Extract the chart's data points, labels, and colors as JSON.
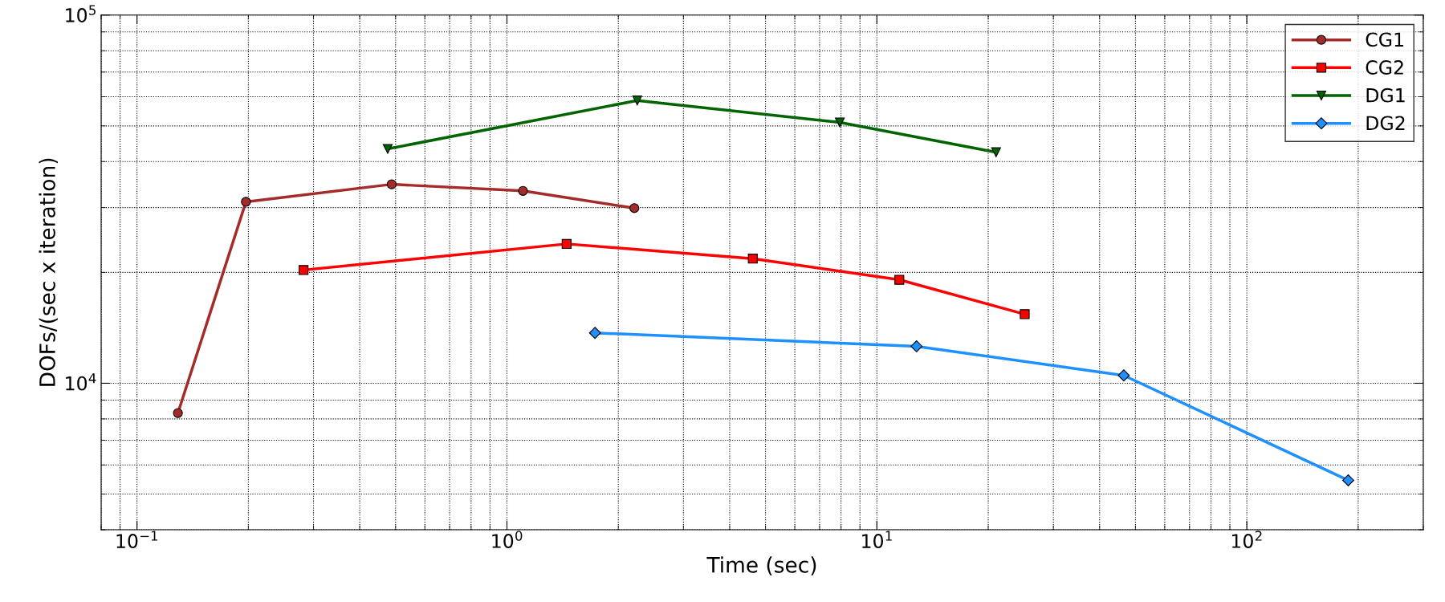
{
  "chart_data": {
    "type": "line",
    "xlabel": "Time (sec)",
    "ylabel": "DOFs/(sec x iteration)",
    "log": "xy",
    "grid": true,
    "legend": "top right",
    "xlim": [
      0.08,
      300
    ],
    "xticks": [
      {
        "value": 0.1,
        "label": "10$^{−1}$"
      },
      {
        "value": 1,
        "label": "10$^{0}$"
      },
      {
        "value": 10,
        "label": "10$^{1}$"
      },
      {
        "value": 100,
        "label": "10$^{2}$"
      }
    ],
    "ylim": [
      4000,
      100000
    ],
    "yticks": [
      {
        "value": 10000,
        "label": "10$^{4}$"
      },
      {
        "value": 100000,
        "label": "10$^{5}$"
      }
    ],
    "series": [
      {
        "name": "CG1",
        "color": "#a52a2a",
        "marker": "circle",
        "x": [
          0.129,
          0.197,
          0.488,
          1.105,
          2.21
        ],
        "values": [
          8300,
          31100,
          34700,
          33300,
          29900
        ]
      },
      {
        "name": "CG2",
        "color": "#ff0000",
        "marker": "square",
        "x": [
          0.282,
          1.45,
          4.62,
          11.5,
          25.1
        ],
        "values": [
          20300,
          23900,
          21800,
          19100,
          15400
        ]
      },
      {
        "name": "DG1",
        "color": "#006400",
        "marker": "triangle",
        "x": [
          0.476,
          2.25,
          7.94,
          21.0
        ],
        "values": [
          43300,
          58600,
          51100,
          42400
        ]
      },
      {
        "name": "DG2",
        "color": "#1e90ff",
        "marker": "diamond",
        "x": [
          1.73,
          12.8,
          46.5,
          188
        ],
        "values": [
          13700,
          12600,
          10500,
          5450
        ]
      }
    ]
  }
}
